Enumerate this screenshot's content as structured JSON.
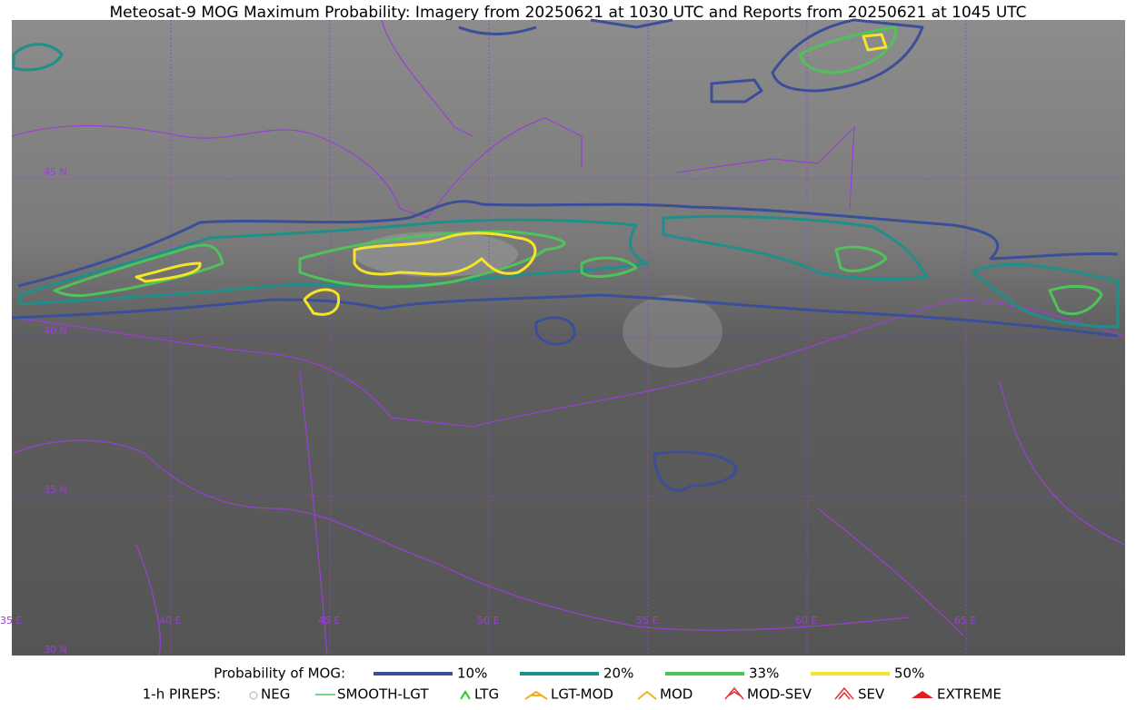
{
  "title": "Meteosat-9 MOG Maximum Probability: Imagery from 20250621 at 1030 UTC and Reports from 20250621 at 1045 UTC",
  "map": {
    "lat_labels": [
      "45 N",
      "40 N",
      "35 N",
      "30 N"
    ],
    "lon_labels": [
      "35 E",
      "40 E",
      "45 E",
      "50 E",
      "55 E",
      "60 E",
      "65 E"
    ]
  },
  "legend": {
    "probability": {
      "label": "Probability of MOG:",
      "levels": [
        "10%",
        "20%",
        "33%",
        "50%"
      ]
    },
    "pireps": {
      "label": "1-h PIREPS:",
      "items": [
        "NEG",
        "SMOOTH-LGT",
        "LTG",
        "LGT-MOD",
        "MOD",
        "MOD-SEV",
        "SEV",
        "EXTREME"
      ]
    }
  }
}
